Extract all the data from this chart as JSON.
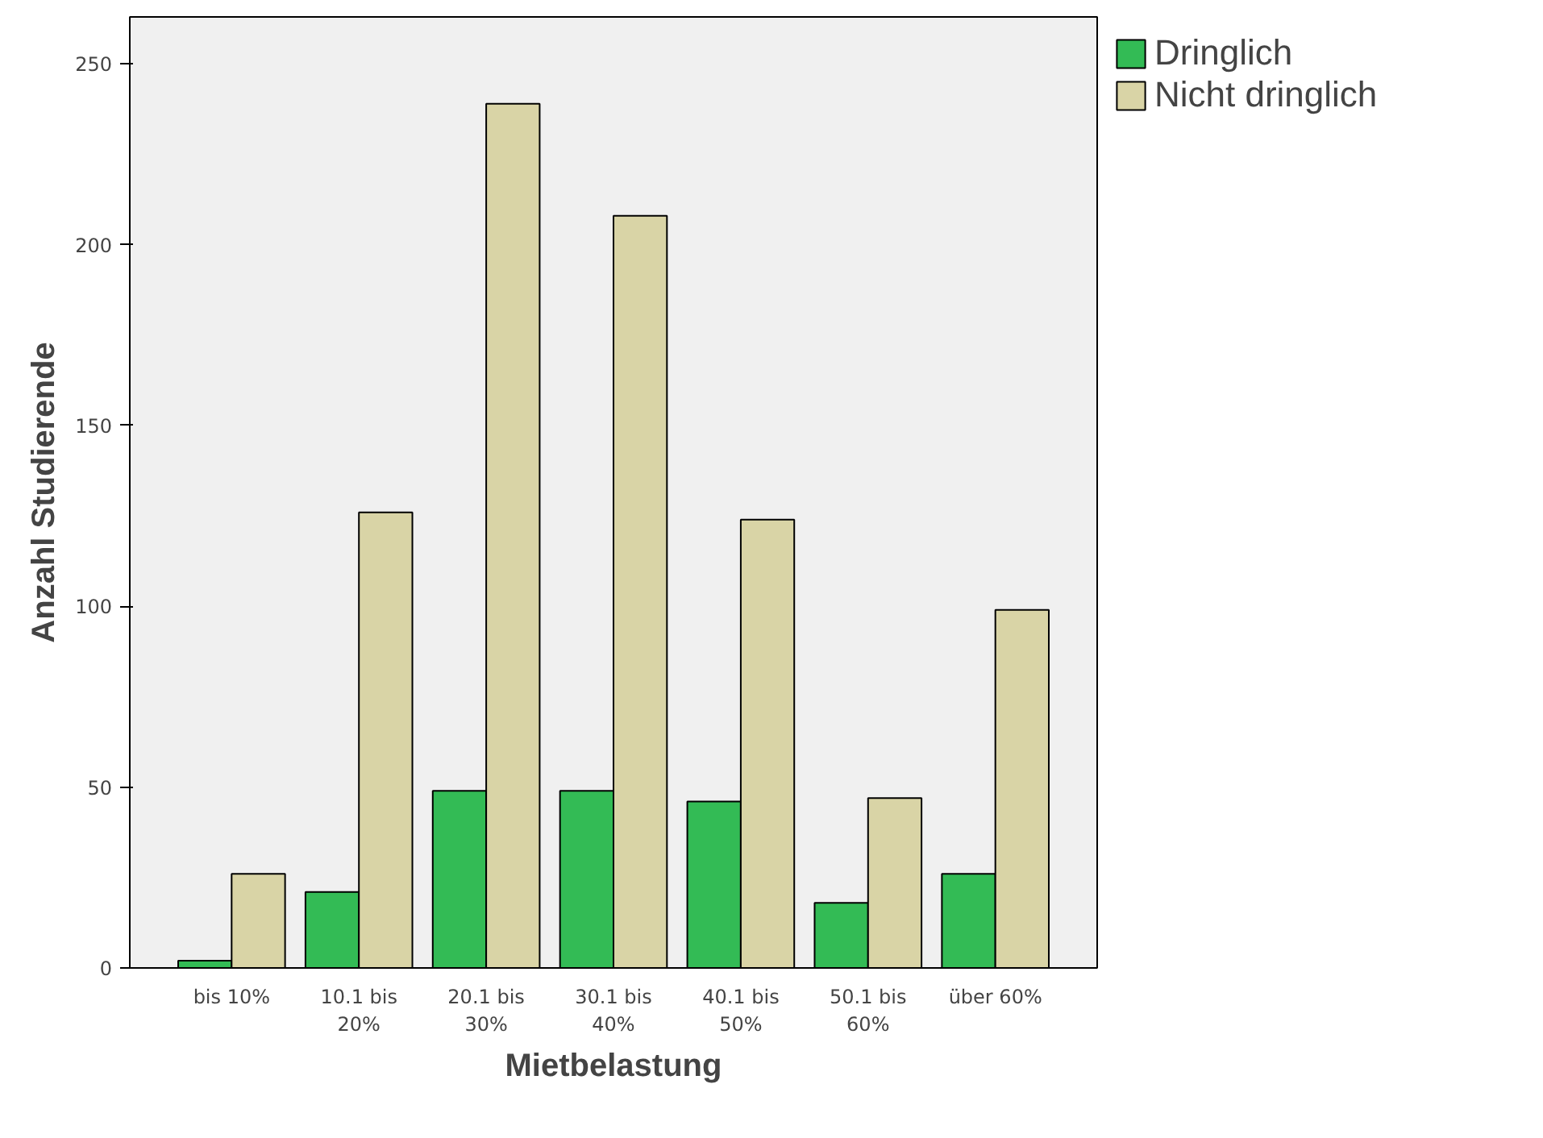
{
  "chart_data": {
    "type": "bar",
    "xlabel": "Mietbelastung",
    "ylabel": "Anzahl Studierende",
    "categories": [
      "bis 10%",
      "10.1 bis 20%",
      "20.1 bis 30%",
      "30.1 bis 40%",
      "40.1 bis 50%",
      "50.1 bis 60%",
      "über 60%"
    ],
    "series": [
      {
        "name": "Dringlich",
        "color": "#33bb55",
        "values": [
          2,
          21,
          49,
          49,
          46,
          18,
          26
        ]
      },
      {
        "name": "Nicht dringlich",
        "color": "#d9d4a6",
        "values": [
          26,
          126,
          239,
          208,
          124,
          47,
          99
        ]
      }
    ],
    "ylim": [
      0,
      263
    ],
    "yticks": [
      0,
      50,
      100,
      150,
      200,
      250
    ],
    "grid": false,
    "legend": "top right"
  }
}
